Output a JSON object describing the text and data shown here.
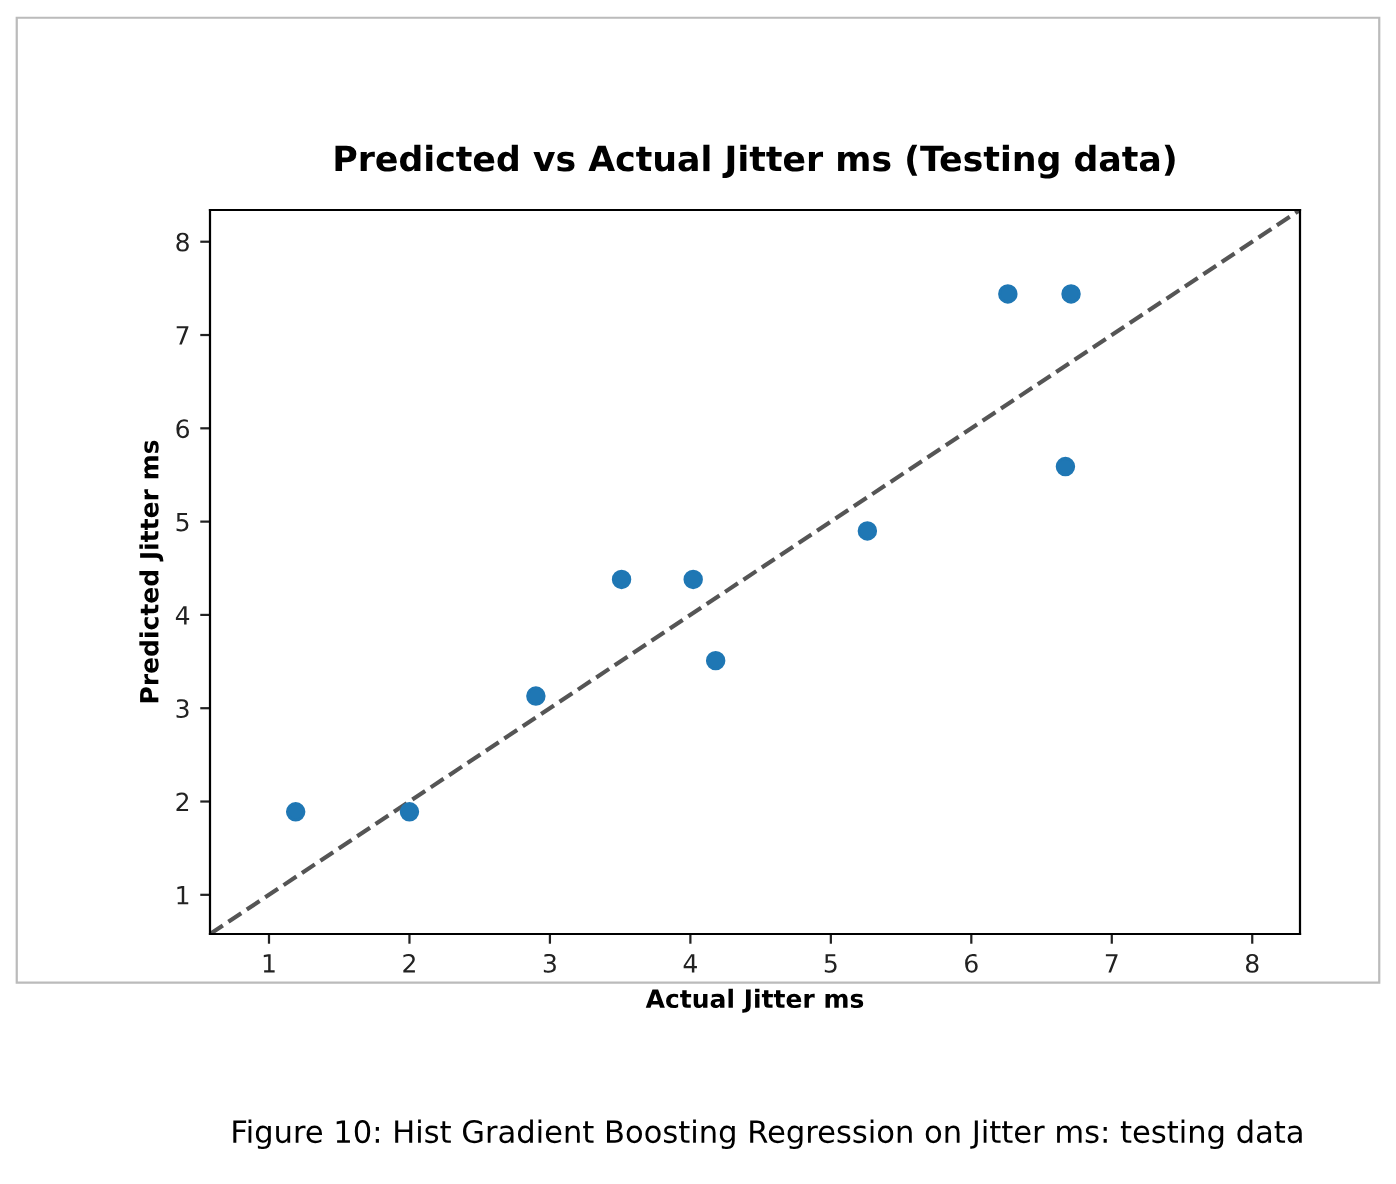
{
  "chart_data": {
    "type": "scatter",
    "title": "Predicted vs Actual Jitter ms (Testing data)",
    "xlabel": "Actual Jitter ms",
    "ylabel": "Predicted Jitter ms",
    "annotations": [
      "Figure 10: Hist Gradient Boosting Regression on Jitter ms: testing data"
    ],
    "series": [
      {
        "color": "#1f77b4",
        "marker": "circle",
        "x": [
          1.19,
          2.0,
          2.9,
          3.51,
          4.02,
          4.18,
          5.26,
          6.26,
          6.71,
          6.67
        ],
        "values": [
          1.89,
          1.89,
          3.13,
          4.38,
          4.38,
          3.51,
          4.9,
          7.44,
          7.44,
          5.59
        ]
      },
      {
        "type": "line",
        "color": "#555555",
        "line_style": "dashed",
        "x": [
          0.58,
          8.34
        ],
        "values": [
          0.58,
          8.34
        ]
      }
    ],
    "xlim": [
      0.58,
      8.34
    ],
    "ylim": [
      0.58,
      8.34
    ],
    "xticks": [
      1,
      2,
      3,
      4,
      5,
      6,
      7,
      8
    ],
    "yticks": [
      1,
      2,
      3,
      4,
      5,
      6,
      7,
      8
    ],
    "grid": false,
    "legend": false
  }
}
